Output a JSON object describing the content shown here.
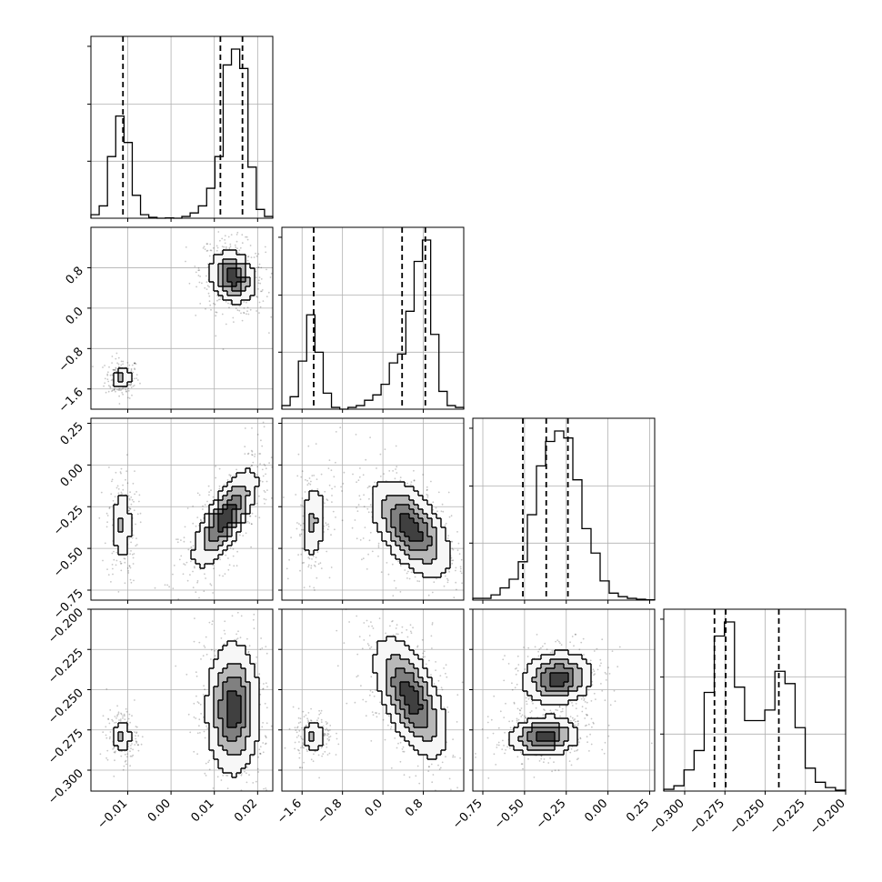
{
  "chart_data": {
    "type": "corner",
    "grid": true,
    "variables": [
      {
        "ticks": [
          "−0.01",
          "0.00",
          "0.01",
          "0.02"
        ],
        "tick_values": [
          -0.01,
          0.0,
          0.01,
          0.02
        ],
        "range": [
          -0.0185,
          0.0235
        ]
      },
      {
        "ticks": [
          "−1.6",
          "−0.8",
          "0.0",
          "0.8"
        ],
        "tick_values": [
          -1.6,
          -0.8,
          0.0,
          0.8
        ],
        "range": [
          -2.0,
          1.6
        ]
      },
      {
        "ticks": [
          "−0.75",
          "−0.50",
          "−0.25",
          "0.00",
          "0.25"
        ],
        "tick_values": [
          -0.75,
          -0.5,
          -0.25,
          0.0,
          0.25
        ],
        "range": [
          -0.81,
          0.28
        ]
      },
      {
        "ticks": [
          "−0.300",
          "−0.275",
          "−0.250",
          "−0.225",
          "−0.200"
        ],
        "tick_values": [
          -0.3,
          -0.275,
          -0.25,
          -0.225,
          -0.2
        ],
        "range": [
          -0.313,
          -0.2
        ]
      }
    ],
    "quantiles": [
      [
        -0.0111,
        0.0114,
        0.0165
      ],
      [
        -1.37,
        0.38,
        0.84
      ],
      [
        -0.51,
        -0.37,
        -0.24
      ],
      [
        -0.2815,
        -0.2745,
        -0.2415
      ]
    ],
    "histograms": [
      {
        "edges_range": [
          -0.0185,
          0.0235
        ],
        "counts": [
          0.02,
          0.07,
          0.35,
          0.58,
          0.43,
          0.13,
          0.02,
          0.005,
          0,
          0.002,
          0,
          0.01,
          0.03,
          0.07,
          0.17,
          0.35,
          0.87,
          0.96,
          0.85,
          0.29,
          0.05,
          0.01
        ]
      },
      {
        "edges_range": [
          -2.0,
          1.6
        ],
        "counts": [
          0.02,
          0.07,
          0.27,
          0.53,
          0.32,
          0.09,
          0.01,
          0,
          0.01,
          0.02,
          0.05,
          0.08,
          0.14,
          0.26,
          0.31,
          0.55,
          0.83,
          0.95,
          0.42,
          0.1,
          0.02,
          0.01
        ]
      },
      {
        "edges_range": [
          -0.81,
          0.28
        ],
        "counts": [
          0.01,
          0.01,
          0.03,
          0.07,
          0.12,
          0.22,
          0.49,
          0.77,
          0.91,
          0.97,
          0.93,
          0.69,
          0.41,
          0.27,
          0.11,
          0.04,
          0.02,
          0.01,
          0.005,
          0.002
        ]
      },
      {
        "edges_range": [
          -0.313,
          -0.2
        ],
        "counts": [
          0.01,
          0.03,
          0.12,
          0.23,
          0.56,
          0.88,
          0.96,
          0.59,
          0.4,
          0.4,
          0.46,
          0.68,
          0.61,
          0.36,
          0.13,
          0.05,
          0.02,
          0.005
        ]
      }
    ],
    "pairs": [
      {
        "row": 1,
        "col": 0,
        "clusters": [
          {
            "cx": -0.0113,
            "cy": -1.38,
            "sx": 0.0013,
            "sy": 0.13,
            "rho": 0,
            "w": 0.28
          },
          {
            "cx": 0.0142,
            "cy": 0.62,
            "sx": 0.0025,
            "sy": 0.25,
            "rho": -0.2,
            "w": 0.72
          }
        ]
      },
      {
        "row": 2,
        "col": 0,
        "clusters": [
          {
            "cx": -0.0113,
            "cy": -0.36,
            "sx": 0.0012,
            "sy": 0.12,
            "rho": 0,
            "w": 0.28
          },
          {
            "cx": 0.0125,
            "cy": -0.32,
            "sx": 0.0036,
            "sy": 0.14,
            "rho": 0.75,
            "w": 0.72
          }
        ]
      },
      {
        "row": 2,
        "col": 1,
        "clusters": [
          {
            "cx": -1.38,
            "cy": -0.34,
            "sx": 0.13,
            "sy": 0.12,
            "rho": 0.15,
            "w": 0.28
          },
          {
            "cx": 0.55,
            "cy": -0.38,
            "sx": 0.38,
            "sy": 0.14,
            "rho": -0.55,
            "w": 0.72
          }
        ]
      },
      {
        "row": 3,
        "col": 0,
        "clusters": [
          {
            "cx": -0.0113,
            "cy": -0.279,
            "sx": 0.0012,
            "sy": 0.0055,
            "rho": 0,
            "w": 0.28
          },
          {
            "cx": 0.0143,
            "cy": -0.262,
            "sx": 0.003,
            "sy": 0.02,
            "rho": 0,
            "w": 0.72
          }
        ]
      },
      {
        "row": 3,
        "col": 1,
        "clusters": [
          {
            "cx": -1.38,
            "cy": -0.279,
            "sx": 0.13,
            "sy": 0.0055,
            "rho": 0,
            "w": 0.28
          },
          {
            "cx": 0.55,
            "cy": -0.255,
            "sx": 0.35,
            "sy": 0.018,
            "rho": -0.6,
            "w": 0.72
          }
        ]
      },
      {
        "row": 3,
        "col": 2,
        "clusters": [
          {
            "cx": -0.38,
            "cy": -0.279,
            "sx": 0.1,
            "sy": 0.006,
            "rho": 0.1,
            "w": 0.5
          },
          {
            "cx": -0.3,
            "cy": -0.243,
            "sx": 0.1,
            "sy": 0.008,
            "rho": 0.1,
            "w": 0.5
          }
        ]
      }
    ]
  }
}
